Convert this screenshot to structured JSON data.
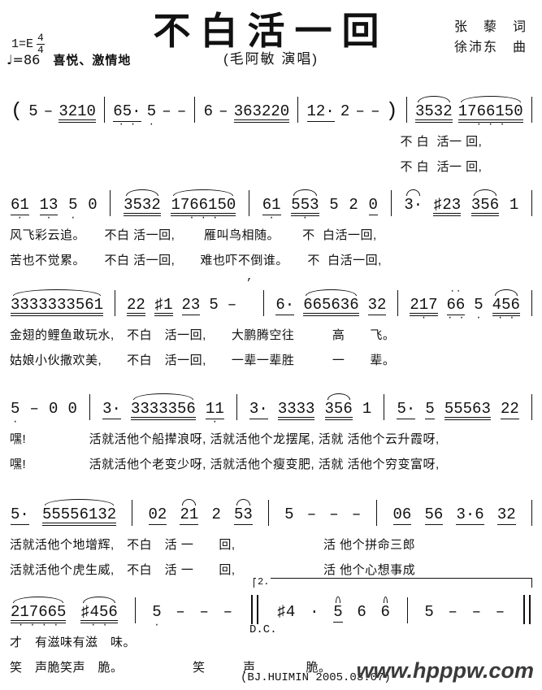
{
  "header": {
    "title": "不白活一回",
    "subtitle": "(毛阿敏 演唱)",
    "lyricist": "张　藜　词",
    "composer": "徐沛东　曲",
    "key": "1=E",
    "meter_top": "4",
    "meter_bottom": "4",
    "tempo": "♩=86",
    "mood": "喜悦、激情地"
  },
  "colors": {
    "ink": "#111111",
    "background": "#ffffff",
    "watermark": "#3a3a3a"
  },
  "systems": [
    {
      "tokens": [
        {
          "k": "txt",
          "t": "(",
          "cls": "paren"
        },
        {
          "k": "n",
          "t": "5"
        },
        {
          "k": "n",
          "t": "–"
        },
        {
          "k": "n",
          "t": "3210",
          "u": 2
        },
        {
          "k": "bar"
        },
        {
          "k": "n",
          "t": "65·",
          "u": 1,
          "d": "· ·"
        },
        {
          "k": "n",
          "t": "5",
          "d": "·"
        },
        {
          "k": "n",
          "t": "–"
        },
        {
          "k": "n",
          "t": "–"
        },
        {
          "k": "bar"
        },
        {
          "k": "n",
          "t": "6"
        },
        {
          "k": "n",
          "t": "–"
        },
        {
          "k": "n",
          "t": "363220",
          "u": 2
        },
        {
          "k": "bar"
        },
        {
          "k": "n",
          "t": "12·",
          "u": 1
        },
        {
          "k": "n",
          "t": "2"
        },
        {
          "k": "n",
          "t": "–"
        },
        {
          "k": "n",
          "t": "–"
        },
        {
          "k": "txt",
          "t": ")",
          "cls": "paren"
        },
        {
          "k": "bar"
        },
        {
          "k": "n",
          "t": "3532",
          "u": 2,
          "s": true
        },
        {
          "k": "n",
          "t": "1766150",
          "u": 2,
          "s": true,
          "d": "· · ·"
        },
        {
          "k": "bar"
        }
      ],
      "lyrics": [
        "　　　　　　　　　　　　　　　　　　　　　　　　　　　　　　　不 白  活一 回,",
        "　　　　　　　　　　　　　　　　　　　　　　　　　　　　　　　不 白  活一 回,"
      ]
    },
    {
      "tokens": [
        {
          "k": "n",
          "t": "61",
          "u": 1,
          "d": "·"
        },
        {
          "k": "n",
          "t": "13",
          "u": 1,
          "d": "·"
        },
        {
          "k": "n",
          "t": "5",
          "d": "·"
        },
        {
          "k": "n",
          "t": "0"
        },
        {
          "k": "bar"
        },
        {
          "k": "n",
          "t": "3532",
          "u": 2,
          "s": true
        },
        {
          "k": "n",
          "t": "1766150",
          "u": 2,
          "s": true,
          "d": "· · ·"
        },
        {
          "k": "bar"
        },
        {
          "k": "n",
          "t": "61",
          "u": 1,
          "d": "·"
        },
        {
          "k": "n",
          "t": "553",
          "u": 2,
          "s": true,
          "d": "·"
        },
        {
          "k": "n",
          "t": "5"
        },
        {
          "k": "n",
          "t": "2"
        },
        {
          "k": "n",
          "t": "0",
          "u": 1
        },
        {
          "k": "bar"
        },
        {
          "k": "n",
          "t": "3·",
          "s": true
        },
        {
          "k": "n",
          "t": "♯23",
          "u": 2
        },
        {
          "k": "n",
          "t": "356",
          "u": 2,
          "s": true
        },
        {
          "k": "n",
          "t": "1"
        },
        {
          "k": "bar"
        }
      ],
      "lyrics": [
        "风飞彩云追。　　不白 活一回,　　 雁叫鸟相随。　　 不  白活一回,",
        "苦也不觉累。　　不白 活一回,　　难也吓不倒谁。　　不  白活一回,"
      ]
    },
    {
      "tokens": [
        {
          "k": "n",
          "t": "3333333561",
          "u": 2,
          "s": true
        },
        {
          "k": "bar"
        },
        {
          "k": "n",
          "t": "22",
          "u": 2
        },
        {
          "k": "n",
          "t": "♯1",
          "u": 2
        },
        {
          "k": "n",
          "t": "23",
          "u": 1
        },
        {
          "k": "n",
          "t": "5"
        },
        {
          "k": "n",
          "t": "–"
        },
        {
          "k": "txt",
          "t": "’",
          "cls": "breath"
        },
        {
          "k": "bar"
        },
        {
          "k": "n",
          "t": "6·",
          "u": 1
        },
        {
          "k": "n",
          "t": "665636",
          "u": 2,
          "s": true
        },
        {
          "k": "n",
          "t": "32",
          "u": 1
        },
        {
          "k": "bar"
        },
        {
          "k": "n",
          "t": "217",
          "u": 2,
          "d": "·"
        },
        {
          "k": "n",
          "t": "66",
          "u": 1,
          "tr": true,
          "d": "· ·"
        },
        {
          "k": "n",
          "t": "5",
          "d": "·"
        },
        {
          "k": "n",
          "t": "456",
          "u": 2,
          "s": true,
          "d": "· ·"
        },
        {
          "k": "bar"
        }
      ],
      "lyrics": [
        "金翅的鲤鱼敢玩水,　不白　活一回,　　大鹏腾空往　　　高　　飞。",
        "姑娘小伙撒欢美,　　不白　活一回,　　一辈一辈胜　　　一　　辈。"
      ]
    },
    {
      "tokens": [
        {
          "k": "n",
          "t": "5",
          "d": "·"
        },
        {
          "k": "n",
          "t": "–"
        },
        {
          "k": "n",
          "t": "0"
        },
        {
          "k": "n",
          "t": "0"
        },
        {
          "k": "bar"
        },
        {
          "k": "n",
          "t": "3·",
          "u": 1
        },
        {
          "k": "n",
          "t": "3333356",
          "u": 2,
          "s": true
        },
        {
          "k": "n",
          "t": "11",
          "u": 1,
          "d": "·"
        },
        {
          "k": "bar"
        },
        {
          "k": "n",
          "t": "3·",
          "u": 1
        },
        {
          "k": "n",
          "t": "3333",
          "u": 2
        },
        {
          "k": "n",
          "t": "356",
          "u": 2,
          "s": true
        },
        {
          "k": "n",
          "t": "1"
        },
        {
          "k": "bar"
        },
        {
          "k": "n",
          "t": "5·",
          "u": 1
        },
        {
          "k": "n",
          "t": "5",
          "u": 1
        },
        {
          "k": "n",
          "t": "55563",
          "u": 2
        },
        {
          "k": "n",
          "t": "22",
          "u": 1
        },
        {
          "k": "bar"
        }
      ],
      "lyrics": [
        "嘿!　　　　　活就活他个船撵浪呀, 活就活他个龙摆尾, 活就 活他个云升霞呀,",
        "嘿!　　　　　活就活他个老变少呀, 活就活他个瘦变肥, 活就 活他个穷变富呀,"
      ]
    },
    {
      "tokens": [
        {
          "k": "n",
          "t": "5·",
          "u": 1
        },
        {
          "k": "n",
          "t": "55556132",
          "u": 2,
          "s": true
        },
        {
          "k": "bar"
        },
        {
          "k": "n",
          "t": "02",
          "u": 1
        },
        {
          "k": "n",
          "t": "21",
          "u": 1,
          "s": true
        },
        {
          "k": "n",
          "t": "2"
        },
        {
          "k": "n",
          "t": "53",
          "u": 1,
          "s": true
        },
        {
          "k": "bar"
        },
        {
          "k": "n",
          "t": "5"
        },
        {
          "k": "n",
          "t": "–"
        },
        {
          "k": "n",
          "t": "–"
        },
        {
          "k": "n",
          "t": "–"
        },
        {
          "k": "bar"
        },
        {
          "k": "n",
          "t": "06",
          "u": 1
        },
        {
          "k": "n",
          "t": "56",
          "u": 1
        },
        {
          "k": "n",
          "t": "3·6",
          "u": 1
        },
        {
          "k": "n",
          "t": "32",
          "u": 1
        },
        {
          "k": "bar"
        }
      ],
      "lyrics": [
        "活就活他个地增辉,　不白　活 一　　回,　　　　　　　活 他个拼命三郎",
        "活就活他个虎生威,　不白　活 一　　回,　　　　　　　活 他个心想事成"
      ]
    },
    {
      "tokens": [
        {
          "k": "n",
          "t": "217665",
          "u": 2,
          "s": true,
          "d": "· · · ·"
        },
        {
          "k": "n",
          "t": "♯456",
          "u": 2,
          "s": true,
          "d": "· ·"
        },
        {
          "k": "bar"
        },
        {
          "k": "n",
          "t": "5",
          "d": "·"
        },
        {
          "k": "n",
          "t": "–"
        },
        {
          "k": "n",
          "t": "–"
        },
        {
          "k": "n",
          "t": "–"
        },
        {
          "k": "dbar"
        },
        {
          "k": "n",
          "t": "♯4"
        },
        {
          "k": "n",
          "t": "·"
        },
        {
          "k": "n",
          "t": "5",
          "u": 1,
          "s": true
        },
        {
          "k": "n",
          "t": "6"
        },
        {
          "k": "n",
          "t": "6",
          "s": true
        },
        {
          "k": "bar"
        },
        {
          "k": "n",
          "t": "5"
        },
        {
          "k": "n",
          "t": "–"
        },
        {
          "k": "n",
          "t": "–"
        },
        {
          "k": "n",
          "t": "–"
        },
        {
          "k": "dbar"
        }
      ],
      "lyrics": [
        "才　有滋味有滋　味。",
        "笑　声脆笑声　脆。　　　　　　笑　　　声　　　　脆。"
      ]
    }
  ],
  "ending": {
    "volta_label": "2.",
    "dc_label": "D.C."
  },
  "footer": {
    "credit": "(BJ.HUIMIN 2005.03.07)",
    "watermark": "www.hpppw.com"
  }
}
